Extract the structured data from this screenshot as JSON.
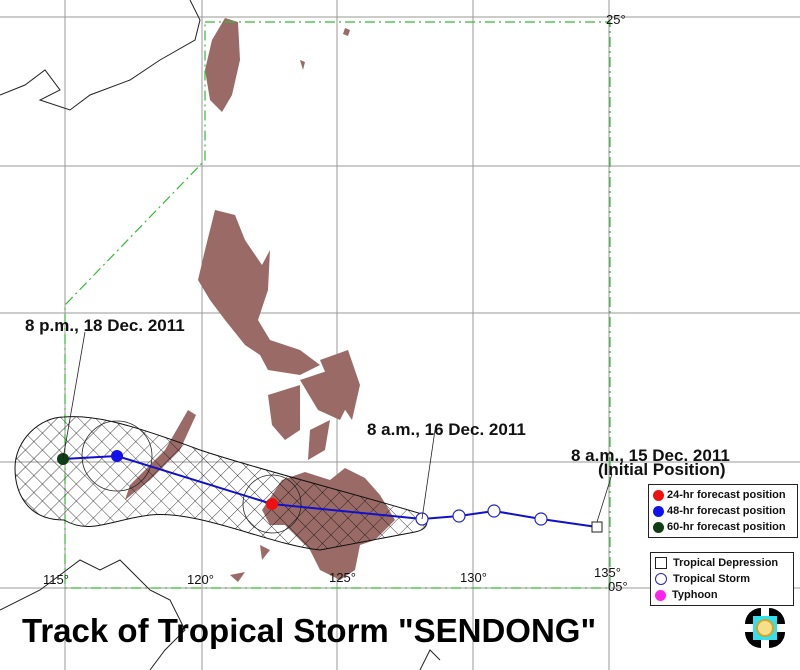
{
  "title": "Track of Tropical Storm \"SENDONG\"",
  "annotations": {
    "initial": "8 a.m., 15 Dec. 2011",
    "initial_note": "(Initial Position)",
    "day16": "8 a.m., 16 Dec. 2011",
    "day18": "8 p.m., 18 Dec. 2011"
  },
  "longitude_labels": [
    "115°",
    "120°",
    "125°",
    "130°",
    "135°"
  ],
  "latitude_labels": [
    "25°",
    "05°"
  ],
  "forecast_legend": [
    {
      "label": "24-hr forecast position",
      "color": "#ee1111"
    },
    {
      "label": "48-hr forecast position",
      "color": "#1111ee"
    },
    {
      "label": "60-hr forecast position",
      "color": "#0f3d14"
    }
  ],
  "category_legend": [
    {
      "label": "Tropical Depression",
      "symbol": "square"
    },
    {
      "label": "Tropical Storm",
      "symbol": "open-circle"
    },
    {
      "label": "Typhoon",
      "symbol": "magenta-dot",
      "color": "#ff22ee"
    }
  ],
  "colors": {
    "land": "#9a6b66",
    "track": "#1111cc",
    "par_boundary": "#33bb33"
  },
  "logo": "PAGASA"
}
